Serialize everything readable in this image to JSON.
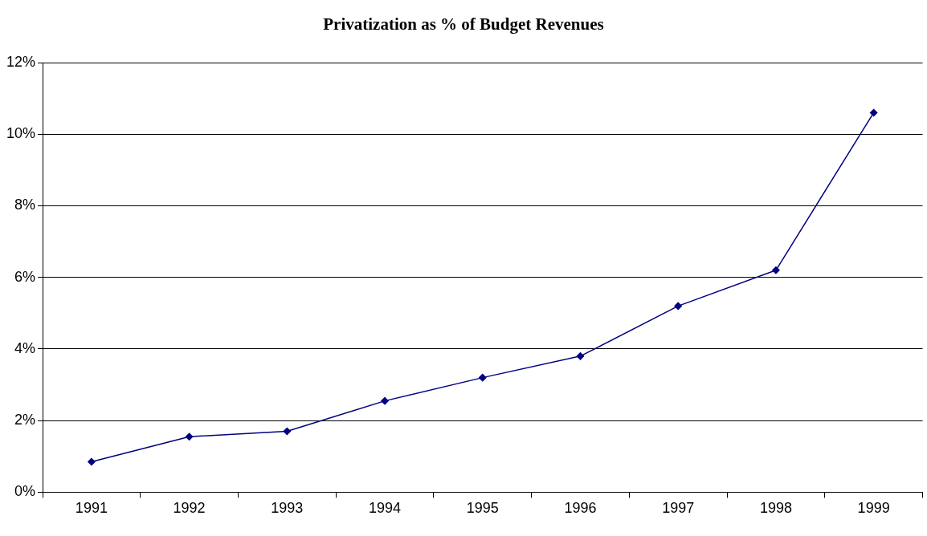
{
  "chart_data": {
    "type": "line",
    "title": "Privatization as % of Budget Revenues",
    "categories": [
      "1991",
      "1992",
      "1993",
      "1994",
      "1995",
      "1996",
      "1997",
      "1998",
      "1999"
    ],
    "series": [
      {
        "color": "#000080",
        "values": [
          0.85,
          1.55,
          1.7,
          2.55,
          3.2,
          3.8,
          5.2,
          6.2,
          10.6
        ]
      }
    ],
    "ylim": [
      0,
      12
    ],
    "yticks": [
      {
        "value": 0,
        "label": "0%"
      },
      {
        "value": 2,
        "label": "2%"
      },
      {
        "value": 4,
        "label": "4%"
      },
      {
        "value": 6,
        "label": "6%"
      },
      {
        "value": 8,
        "label": "8%"
      },
      {
        "value": 10,
        "label": "10%"
      },
      {
        "value": 12,
        "label": "12%"
      }
    ],
    "grid": "y",
    "legend": false,
    "marker": "diamond",
    "line_style": "solid"
  }
}
